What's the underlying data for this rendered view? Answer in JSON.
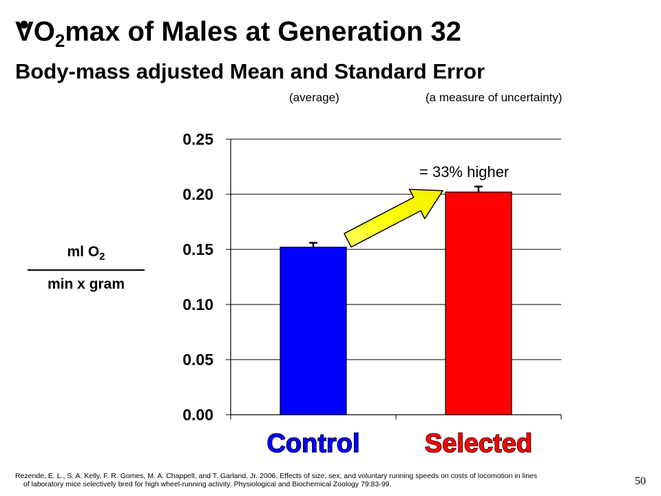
{
  "header": {
    "title_v": "V",
    "title_o": "O",
    "title_sub": "2",
    "title_rest": "max of Males at Generation 32",
    "subtitle": "Body-mass adjusted Mean and Standard Error",
    "note_mean": "(average)",
    "note_se": "(a measure of uncertainty)"
  },
  "ylabel": {
    "top": "ml O",
    "top_sub": "2",
    "bottom": "min x gram"
  },
  "chart_data": {
    "type": "bar",
    "categories": [
      "Control",
      "Selected"
    ],
    "values": [
      0.152,
      0.202
    ],
    "errors": [
      0.004,
      0.005
    ],
    "colors": [
      "#0000ff",
      "#ff0000"
    ],
    "ylim": [
      0,
      0.25
    ],
    "yticks": [
      "0.00",
      "0.05",
      "0.10",
      "0.15",
      "0.20",
      "0.25"
    ],
    "grid": true,
    "annotation": "= 33% higher"
  },
  "citation": {
    "line1": "Rezende, E. L., S. A. Kelly, F. R. Gomes, M. A. Chappell, and T. Garland, Jr. 2006. Effects of size, sex, and voluntary running speeds on costs of locomotion in lines",
    "line2": "of laboratory mice selectively bred for high wheel-running activity. Physiological and Biochemical Zoology 79:83-99."
  },
  "page_number": "50"
}
